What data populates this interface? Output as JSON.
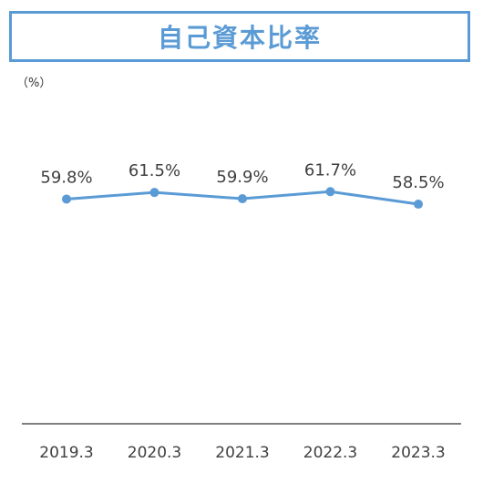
{
  "title": "自己資本比率",
  "chart_data": {
    "type": "line",
    "unit_label": "（%）",
    "categories": [
      "2019.3",
      "2020.3",
      "2021.3",
      "2022.3",
      "2023.3"
    ],
    "series": [
      {
        "values": [
          59.8,
          61.5,
          59.9,
          61.7,
          58.5
        ],
        "labels": [
          "59.8%",
          "61.5%",
          "59.9%",
          "61.7%",
          "58.5%"
        ]
      }
    ],
    "xlabel": "",
    "ylabel": "",
    "ylim": [
      0,
      75
    ],
    "grid": false,
    "colors": {
      "line": "#5b9bd5",
      "axis": "#7f7f7f",
      "title": "#5b9bd5"
    }
  }
}
